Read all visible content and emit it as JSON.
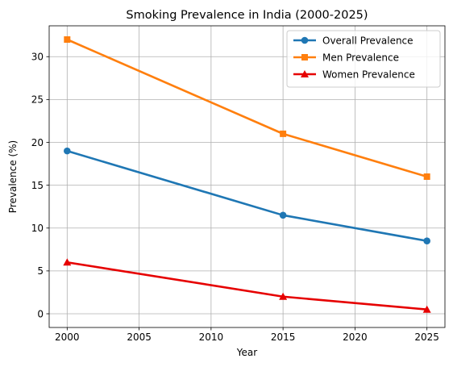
{
  "chart_data": {
    "type": "line",
    "title": "Smoking Prevalence in India (2000-2025)",
    "xlabel": "Year",
    "ylabel": "Prevalence (%)",
    "x": [
      2000,
      2015,
      2025
    ],
    "xlim": [
      1998.75,
      2026.25
    ],
    "ylim": [
      -1.6,
      33.6
    ],
    "xticks": [
      2000,
      2005,
      2010,
      2015,
      2020,
      2025
    ],
    "yticks": [
      0,
      5,
      10,
      15,
      20,
      25,
      30
    ],
    "grid": true,
    "legend_position": "top-right",
    "series": [
      {
        "name": "Overall Prevalence",
        "values": [
          19,
          11.5,
          8.5
        ],
        "color": "#1f77b4",
        "marker": "circle"
      },
      {
        "name": "Men Prevalence",
        "values": [
          32,
          21,
          16
        ],
        "color": "#ff7f0e",
        "marker": "square"
      },
      {
        "name": "Women Prevalence",
        "values": [
          6,
          2,
          0.5
        ],
        "color": "#e60000",
        "marker": "triangle"
      }
    ]
  }
}
